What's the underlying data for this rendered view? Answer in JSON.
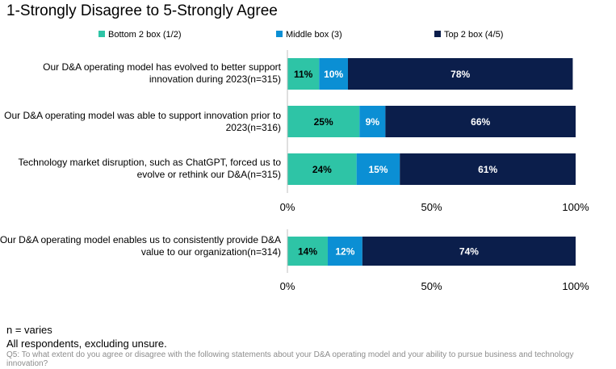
{
  "chart_data": {
    "type": "bar",
    "orientation": "horizontal",
    "stacked": true,
    "title": "1-Strongly Disagree to 5-Strongly Agree",
    "legend": {
      "placement": "top"
    },
    "series": [
      {
        "name": "Bottom 2 box (1/2)",
        "color": "#2ec4a6"
      },
      {
        "name": "Middle box (3)",
        "color": "#0b8fd4"
      },
      {
        "name": "Top 2 box (4/5)",
        "color": "#0b1e4b"
      }
    ],
    "panels": [
      {
        "categories": [
          "Our D&A operating model has evolved to better support innovation during 2023(n=315)",
          "Our D&A operating model was able to support innovation prior to 2023(n=316)",
          "Technology market disruption, such as ChatGPT, forced us to evolve or rethink our D&A(n=315)"
        ],
        "values": [
          [
            11,
            10,
            78
          ],
          [
            25,
            9,
            66
          ],
          [
            24,
            15,
            61
          ]
        ],
        "labels": [
          [
            "11%",
            "10%",
            "78%"
          ],
          [
            "25%",
            "9%",
            "66%"
          ],
          [
            "24%",
            "15%",
            "61%"
          ]
        ],
        "xlim": [
          0,
          100
        ],
        "xticks": [
          "0%",
          "50%",
          "100%"
        ]
      },
      {
        "categories": [
          "Our D&A operating model enables us to consistently provide D&A value to our organization(n=314)"
        ],
        "values": [
          [
            14,
            12,
            74
          ]
        ],
        "labels": [
          [
            "14%",
            "12%",
            "74%"
          ]
        ],
        "xlim": [
          0,
          100
        ],
        "xticks": [
          "0%",
          "50%",
          "100%"
        ]
      }
    ]
  },
  "footer": {
    "n_note": "n = varies",
    "base": "All respondents, excluding unsure.",
    "question": "Q5: To what extent do you agree or disagree with the following statements about your D&A operating model and your ability to pursue business and technology innovation?"
  }
}
